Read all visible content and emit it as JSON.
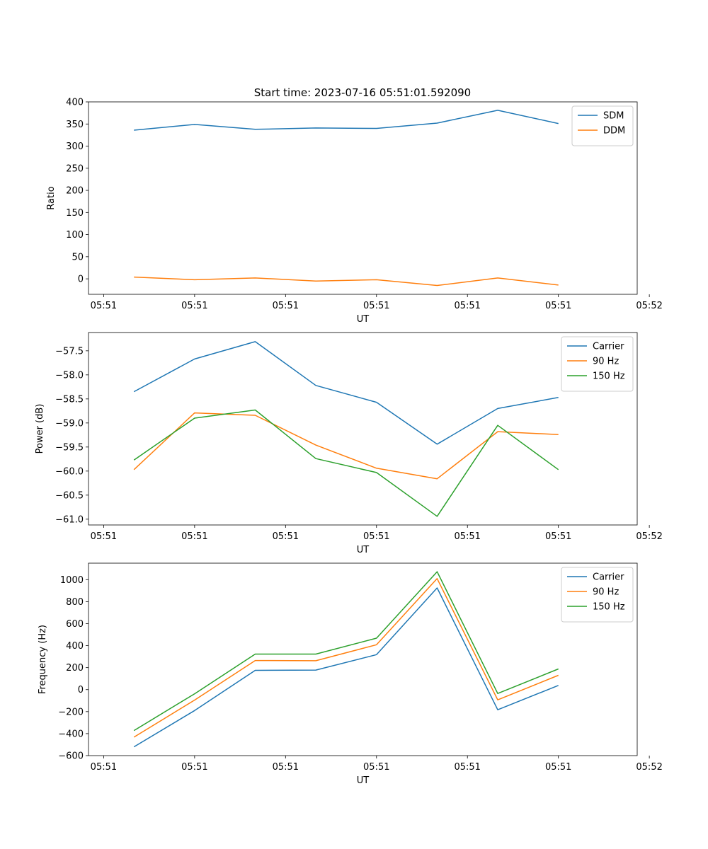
{
  "figure_title": "Start time: 2023-07-16 05:51:01.592090",
  "colors": {
    "c0": "#1f77b4",
    "c1": "#ff7f0e",
    "c2": "#2ca02c"
  },
  "chart_data": [
    {
      "type": "line",
      "title": "Start time: 2023-07-16 05:51:01.592090",
      "xlabel": "UT",
      "ylabel": "Ratio",
      "x": [
        1,
        2,
        3,
        4,
        5,
        6,
        7,
        8
      ],
      "xlim": [
        0.25,
        9.3
      ],
      "ylim": [
        -35,
        400
      ],
      "xticks": [
        0.5,
        2.0,
        3.5,
        5.0,
        6.5,
        8.0,
        9.5
      ],
      "xtick_labels": [
        "05:51",
        "05:51",
        "05:51",
        "05:51",
        "05:51",
        "05:51",
        "05:52"
      ],
      "yticks": [
        0,
        50,
        100,
        150,
        200,
        250,
        300,
        350,
        400
      ],
      "ytick_labels": [
        "0",
        "50",
        "100",
        "150",
        "200",
        "250",
        "300",
        "350",
        "400"
      ],
      "legend_position": "top-right",
      "series": [
        {
          "name": "SDM",
          "color": "#1f77b4",
          "values": [
            336,
            349,
            338,
            341,
            340,
            352,
            381,
            351
          ]
        },
        {
          "name": "DDM",
          "color": "#ff7f0e",
          "values": [
            4,
            -2,
            2,
            -5,
            -2,
            -15,
            2,
            -14
          ]
        }
      ]
    },
    {
      "type": "line",
      "title": "",
      "xlabel": "UT",
      "ylabel": "Power (dB)",
      "x": [
        1,
        2,
        3,
        4,
        5,
        6,
        7,
        8
      ],
      "xlim": [
        0.25,
        9.3
      ],
      "ylim": [
        -61.12,
        -57.12
      ],
      "xticks": [
        0.5,
        2.0,
        3.5,
        5.0,
        6.5,
        8.0,
        9.5
      ],
      "xtick_labels": [
        "05:51",
        "05:51",
        "05:51",
        "05:51",
        "05:51",
        "05:51",
        "05:52"
      ],
      "yticks": [
        -61.0,
        -60.5,
        -60.0,
        -59.5,
        -59.0,
        -58.5,
        -58.0,
        -57.5
      ],
      "ytick_labels": [
        "−61.0",
        "−60.5",
        "−60.0",
        "−59.5",
        "−59.0",
        "−58.5",
        "−58.0",
        "−57.5"
      ],
      "legend_position": "top-right",
      "series": [
        {
          "name": "Carrier",
          "color": "#1f77b4",
          "values": [
            -58.35,
            -57.67,
            -57.31,
            -58.22,
            -58.57,
            -59.44,
            -58.7,
            -58.47
          ]
        },
        {
          "name": "90 Hz",
          "color": "#ff7f0e",
          "values": [
            -59.97,
            -58.79,
            -58.84,
            -59.46,
            -59.94,
            -60.16,
            -59.18,
            -59.24
          ]
        },
        {
          "name": "150 Hz",
          "color": "#2ca02c",
          "values": [
            -59.77,
            -58.9,
            -58.73,
            -59.74,
            -60.03,
            -60.94,
            -59.05,
            -59.97
          ]
        }
      ]
    },
    {
      "type": "line",
      "title": "",
      "xlabel": "UT",
      "ylabel": "Frequency (Hz)",
      "x": [
        1,
        2,
        3,
        4,
        5,
        6,
        7,
        8
      ],
      "xlim": [
        0.25,
        9.3
      ],
      "ylim": [
        -600,
        1150
      ],
      "xticks": [
        0.5,
        2.0,
        3.5,
        5.0,
        6.5,
        8.0,
        9.5
      ],
      "xtick_labels": [
        "05:51",
        "05:51",
        "05:51",
        "05:51",
        "05:51",
        "05:51",
        "05:52"
      ],
      "yticks": [
        -600,
        -400,
        -200,
        0,
        200,
        400,
        600,
        800,
        1000
      ],
      "ytick_labels": [
        "−600",
        "−400",
        "−200",
        "0",
        "200",
        "400",
        "600",
        "800",
        "1000"
      ],
      "legend_position": "top-right",
      "series": [
        {
          "name": "Carrier",
          "color": "#1f77b4",
          "values": [
            -520,
            -190,
            175,
            178,
            318,
            925,
            -183,
            38
          ]
        },
        {
          "name": "90 Hz",
          "color": "#ff7f0e",
          "values": [
            -432,
            -95,
            265,
            263,
            408,
            1010,
            -93,
            130
          ]
        },
        {
          "name": "150 Hz",
          "color": "#2ca02c",
          "values": [
            -372,
            -38,
            323,
            323,
            468,
            1072,
            -35,
            188
          ]
        }
      ]
    }
  ]
}
